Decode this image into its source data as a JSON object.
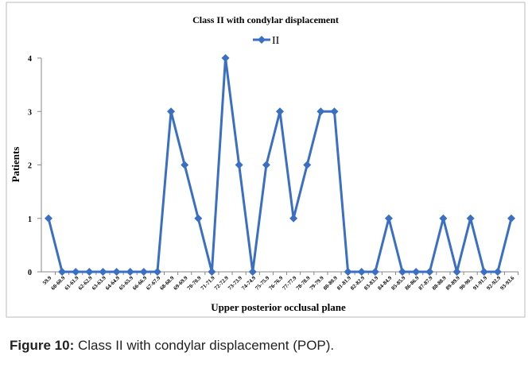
{
  "chart_data": {
    "type": "line",
    "title": "Class II with condylar displacement",
    "x_label": "Upper posterior occlusal plane",
    "y_label": "Patients",
    "categories": [
      "59.9",
      "60-60.9",
      "61-61.9",
      "62-62.9",
      "63-63.9",
      "64-64.9",
      "65-65.9",
      "66-66.9",
      "67-67.9",
      "68-68.9",
      "69-69.9",
      "70-70.9",
      "71-71.9",
      "72-72.9",
      "73-73.9",
      "74-74.9",
      "75-75.9",
      "76-76.9",
      "77-77.9",
      "78-78.9",
      "79-79.9",
      "80-80.9",
      "81-81.9",
      "82-82.9",
      "83-83.9",
      "84-84.9",
      "85-85.9",
      "86-86.9",
      "87-87.9",
      "88-88.9",
      "89-89.9",
      "90-90.9",
      "91-91.9",
      "92-92.9",
      "93-93.6"
    ],
    "series": [
      {
        "name": "II",
        "color": "#3a6fc4",
        "values": [
          1,
          0,
          0,
          0,
          0,
          0,
          0,
          0,
          0,
          3,
          2,
          1,
          0,
          4,
          2,
          0,
          2,
          3,
          1,
          2,
          3,
          3,
          0,
          0,
          0,
          1,
          0,
          0,
          0,
          1,
          0,
          1,
          0,
          0,
          1
        ]
      }
    ],
    "ylim": [
      0,
      4
    ],
    "yticks": [
      0,
      1,
      2,
      3,
      4
    ],
    "grid": false,
    "legend": "top"
  },
  "caption": {
    "label": "Figure 10:",
    "text": " Class II with condylar displacement (POP)."
  }
}
